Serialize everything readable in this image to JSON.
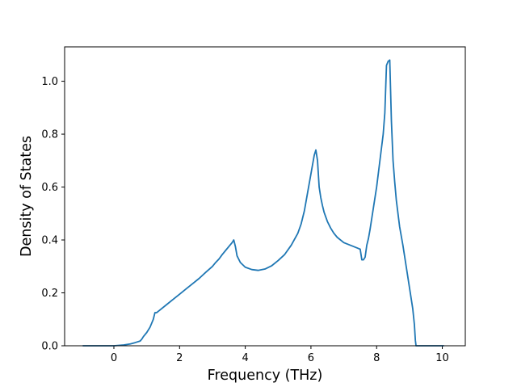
{
  "chart_data": {
    "type": "line",
    "title": "",
    "xlabel": "Frequency (THz)",
    "ylabel": "Density of States",
    "xlim": [
      -1.5,
      10.7
    ],
    "ylim": [
      0.0,
      1.13
    ],
    "xticks": [
      0,
      2,
      4,
      6,
      8,
      10
    ],
    "yticks": [
      0.0,
      0.2,
      0.4,
      0.6,
      0.8,
      1.0
    ],
    "xtick_labels": [
      "0",
      "2",
      "4",
      "6",
      "8",
      "10"
    ],
    "ytick_labels": [
      "0.0",
      "0.2",
      "0.4",
      "0.6",
      "0.8",
      "1.0"
    ],
    "grid": false,
    "line_color": "#1f77b4",
    "series": [
      {
        "x": [
          -0.95,
          -0.5,
          0.0,
          0.3,
          0.5,
          0.65,
          0.8,
          0.85,
          0.9,
          1.0,
          1.1,
          1.15,
          1.2,
          1.25,
          1.3,
          1.4,
          1.6,
          1.8,
          2.0,
          2.2,
          2.4,
          2.6,
          2.8,
          3.0,
          3.1,
          3.2,
          3.3,
          3.4,
          3.5,
          3.6,
          3.65,
          3.7,
          3.75,
          3.85,
          4.0,
          4.2,
          4.4,
          4.6,
          4.8,
          5.0,
          5.2,
          5.4,
          5.6,
          5.7,
          5.8,
          5.9,
          6.0,
          6.1,
          6.15,
          6.2,
          6.25,
          6.3,
          6.35,
          6.4,
          6.5,
          6.6,
          6.7,
          6.8,
          7.0,
          7.2,
          7.4,
          7.5,
          7.55,
          7.6,
          7.65,
          7.7,
          7.75,
          7.8,
          7.9,
          8.0,
          8.1,
          8.2,
          8.25,
          8.3,
          8.35,
          8.4,
          8.45,
          8.5,
          8.55,
          8.6,
          8.7,
          8.8,
          8.9,
          9.0,
          9.1,
          9.15,
          9.18,
          9.2,
          9.5,
          10.0,
          10.05
        ],
        "y": [
          0.0,
          0.0,
          0.0,
          0.003,
          0.007,
          0.012,
          0.018,
          0.025,
          0.035,
          0.05,
          0.07,
          0.085,
          0.1,
          0.125,
          0.125,
          0.135,
          0.155,
          0.175,
          0.195,
          0.215,
          0.235,
          0.255,
          0.278,
          0.3,
          0.315,
          0.328,
          0.345,
          0.36,
          0.375,
          0.39,
          0.4,
          0.375,
          0.34,
          0.315,
          0.297,
          0.288,
          0.285,
          0.29,
          0.302,
          0.322,
          0.345,
          0.38,
          0.425,
          0.46,
          0.51,
          0.58,
          0.65,
          0.72,
          0.74,
          0.7,
          0.6,
          0.56,
          0.53,
          0.505,
          0.47,
          0.445,
          0.425,
          0.41,
          0.39,
          0.38,
          0.37,
          0.365,
          0.325,
          0.325,
          0.335,
          0.38,
          0.405,
          0.44,
          0.52,
          0.6,
          0.7,
          0.8,
          0.88,
          1.06,
          1.075,
          1.08,
          0.85,
          0.7,
          0.62,
          0.55,
          0.45,
          0.38,
          0.3,
          0.22,
          0.14,
          0.08,
          0.02,
          0.0,
          0.0,
          0.0,
          0.0
        ]
      }
    ]
  }
}
